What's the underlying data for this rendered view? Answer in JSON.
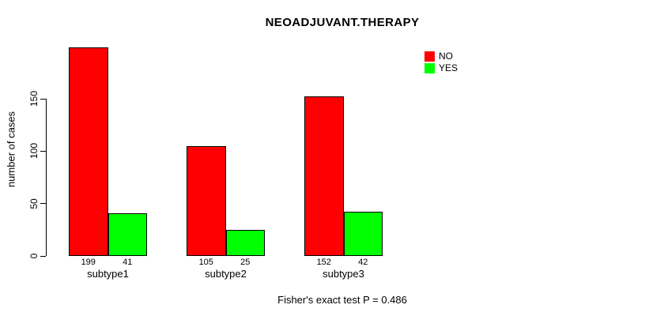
{
  "chart_data": {
    "type": "bar",
    "title": "NEOADJUVANT.THERAPY",
    "ylabel": "number of cases",
    "xlabel": "",
    "categories": [
      "subtype1",
      "subtype2",
      "subtype3"
    ],
    "series": [
      {
        "name": "NO",
        "color": "#FF0000",
        "values": [
          199,
          105,
          152
        ]
      },
      {
        "name": "YES",
        "color": "#00FF00",
        "values": [
          41,
          25,
          42
        ]
      }
    ],
    "yticks": [
      0,
      50,
      100,
      150
    ],
    "ylim": [
      0,
      150
    ],
    "grid": false,
    "legend_position": "top-right",
    "bar_value_labels_shown": true,
    "annotation": "Fisher's exact test P = 0.486",
    "colors": {
      "axis": "#000000",
      "text": "#000000",
      "background": "#FFFFFF",
      "no": "#FF0000",
      "yes": "#00FF00"
    }
  }
}
